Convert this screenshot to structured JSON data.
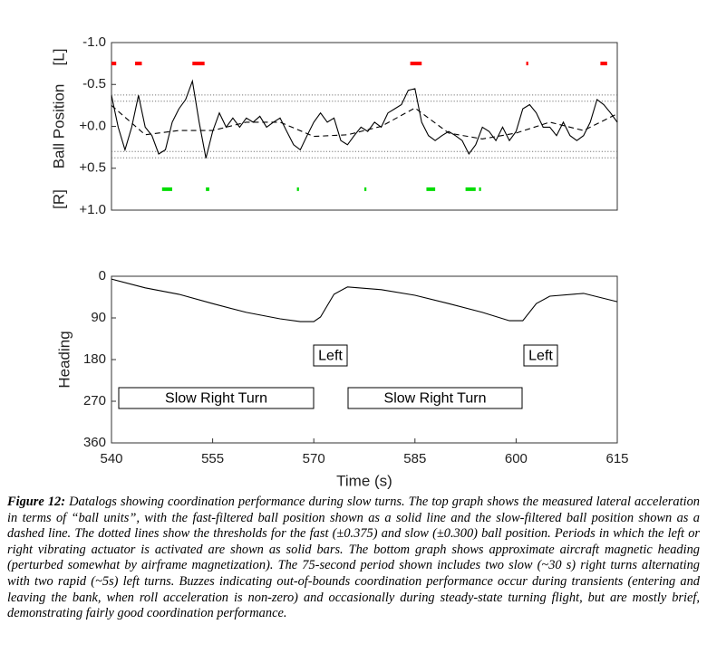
{
  "chart_data": [
    {
      "type": "line",
      "ylabel": "Ball Position",
      "ylabel_top": "[L]",
      "ylabel_bottom": "[R]",
      "xlim": [
        540,
        615
      ],
      "ylim": [
        -1,
        1
      ],
      "y_reversed": true,
      "yticks": [
        {
          "value": -1,
          "label": "-1.0"
        },
        {
          "value": -0.5,
          "label": "-0.5"
        },
        {
          "value": 0,
          "label": "+0.0"
        },
        {
          "value": 0.5,
          "label": "+0.5"
        },
        {
          "value": 1,
          "label": "+1.0"
        }
      ],
      "thresholds": [
        -0.375,
        -0.3,
        0.3,
        0.375
      ],
      "series": [
        {
          "color": "#000000",
          "style": "solid",
          "x": [
            540,
            541,
            542,
            543,
            544,
            545,
            546,
            547,
            548,
            549,
            550,
            551,
            552,
            553,
            554,
            555,
            556,
            557,
            558,
            559,
            560,
            561,
            562,
            563,
            564,
            565,
            566,
            567,
            568,
            569,
            570,
            571,
            572,
            573,
            574,
            575,
            576,
            577,
            578,
            579,
            580,
            581,
            582,
            583,
            584,
            585,
            586,
            587,
            588,
            589,
            590,
            591,
            592,
            593,
            594,
            595,
            596,
            597,
            598,
            599,
            600,
            601,
            602,
            603,
            604,
            605,
            606,
            607,
            608,
            609,
            610,
            611,
            612,
            613,
            614,
            615
          ],
          "values": [
            -0.37,
            0.01,
            0.28,
            0.01,
            -0.37,
            0.01,
            0.11,
            0.33,
            0.28,
            -0.05,
            -0.21,
            -0.32,
            -0.54,
            -0.05,
            0.38,
            0.06,
            -0.16,
            0.01,
            -0.1,
            0.01,
            -0.1,
            -0.05,
            -0.12,
            0.01,
            -0.05,
            -0.1,
            0.06,
            0.22,
            0.28,
            0.11,
            -0.05,
            -0.16,
            -0.05,
            -0.1,
            0.17,
            0.22,
            0.11,
            0.01,
            0.06,
            -0.05,
            0.01,
            -0.16,
            -0.21,
            -0.26,
            -0.43,
            -0.45,
            -0.05,
            0.11,
            0.17,
            0.11,
            0.06,
            0.11,
            0.17,
            0.33,
            0.22,
            0.01,
            0.06,
            0.17,
            0.01,
            0.17,
            0.06,
            -0.21,
            -0.26,
            -0.16,
            0.01,
            0.01,
            0.11,
            -0.05,
            0.11,
            0.17,
            0.11,
            -0.05,
            -0.32,
            -0.26,
            -0.16,
            -0.05
          ]
        },
        {
          "color": "#000000",
          "style": "dashed",
          "x": [
            540,
            545,
            550,
            555,
            560,
            565,
            570,
            575,
            580,
            585,
            590,
            595,
            600,
            605,
            610,
            615
          ],
          "values": [
            -0.25,
            0.1,
            0.05,
            0.05,
            -0.05,
            -0.05,
            0.12,
            0.1,
            0,
            -0.22,
            0.08,
            0.15,
            0.08,
            -0.05,
            0.05,
            -0.15
          ]
        }
      ],
      "bars": [
        {
          "color": "#ff0000",
          "level": -0.75,
          "intervals": [
            [
              540,
              540.7
            ],
            [
              543.5,
              544.5
            ],
            [
              552,
              553.8
            ],
            [
              584.3,
              586
            ],
            [
              601.5,
              601.8
            ],
            [
              612.5,
              613.5
            ]
          ]
        },
        {
          "color": "#00dd00",
          "level": 0.75,
          "intervals": [
            [
              547.5,
              549
            ],
            [
              554,
              554.5
            ],
            [
              567.5,
              567.8
            ],
            [
              577.5,
              577.8
            ],
            [
              586.7,
              588
            ],
            [
              592.5,
              594
            ],
            [
              594.5,
              594.8
            ]
          ]
        }
      ]
    },
    {
      "type": "line",
      "ylabel": "Heading",
      "xlabel": "Time (s)",
      "xlim": [
        540,
        615
      ],
      "ylim": [
        0,
        360
      ],
      "y_reversed": true,
      "xticks": [
        540,
        555,
        570,
        585,
        600,
        615
      ],
      "yticks": [
        0,
        90,
        180,
        270,
        360
      ],
      "series": [
        {
          "color": "#000000",
          "style": "solid",
          "x": [
            540,
            545,
            550,
            555,
            560,
            565,
            568,
            570,
            571,
            573,
            575,
            580,
            585,
            590,
            595,
            599,
            601,
            603,
            605,
            610,
            615
          ],
          "values": [
            6,
            25,
            39,
            59,
            78,
            92,
            98,
            98,
            88,
            39,
            23,
            29,
            41,
            59,
            78,
            96,
            96,
            59,
            43,
            37,
            55
          ]
        }
      ],
      "annotations": [
        "Left",
        "Left",
        "Slow Right Turn",
        "Slow Right Turn"
      ]
    }
  ],
  "caption": {
    "label": "Figure 12:",
    "text": "Datalogs showing coordination performance during slow turns. The top graph shows the measured lateral acceleration in terms of “ball units”, with the fast-filtered ball position shown as a solid line and the slow-filtered ball position shown as a dashed line.  The dotted lines show the thresholds for the fast (±0.375) and slow (±0.300) ball position. Periods in which the left or right vibrating actuator is activated are shown as solid bars.  The bottom graph shows approximate aircraft magnetic heading (perturbed somewhat by airframe magnetization). The 75-second period shown includes two slow (~30 s) right turns alternating with two rapid (~5s) left turns.  Buzzes indicating out-of-bounds coordination performance occur during transients (entering and leaving the bank, when roll acceleration is non-zero) and occasionally during steady-state turning flight, but are mostly brief, demonstrating fairly good coordination performance."
  }
}
